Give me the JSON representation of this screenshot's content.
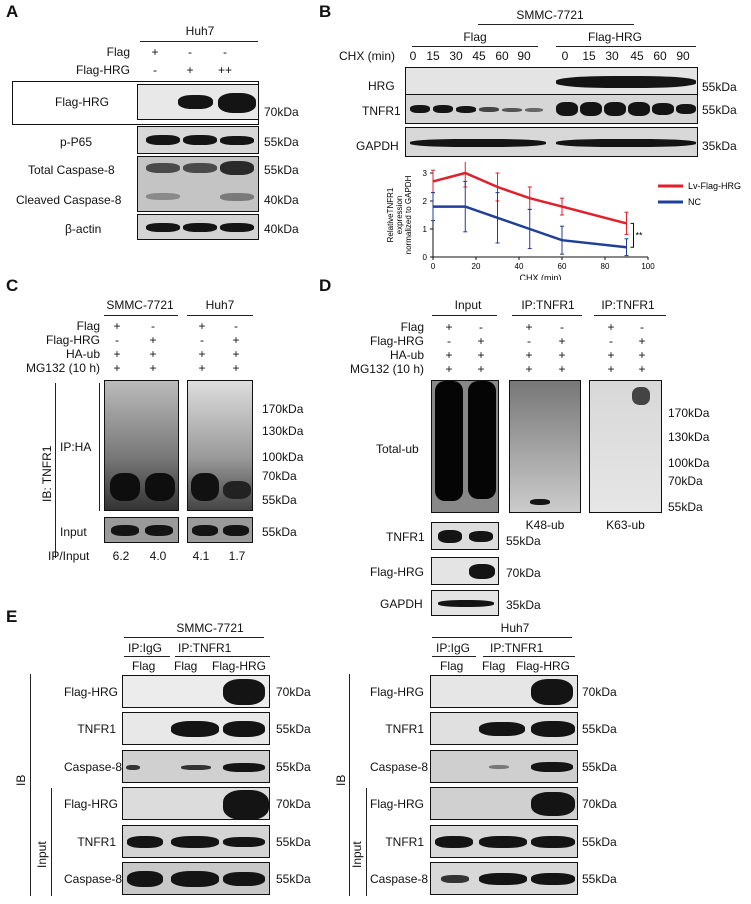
{
  "panels": [
    "A",
    "B",
    "C",
    "D",
    "E"
  ],
  "panelA": {
    "cell_line": "Huh7",
    "row_labels": [
      "Flag",
      "Flag-HRG"
    ],
    "row_values": [
      [
        "+",
        "-",
        "-"
      ],
      [
        "-",
        "+",
        "++"
      ]
    ],
    "blots": [
      "Flag-HRG",
      "p-P65",
      "Total Caspase-8",
      "Cleaved Caspase-8",
      "β-actin"
    ],
    "mw": [
      "70kDa",
      "55kDa",
      "55kDa",
      "40kDa",
      "40kDa"
    ]
  },
  "panelB": {
    "cell_line": "SMMC-7721",
    "time_label": "CHX (min)",
    "groups": [
      "Flag",
      "Flag-HRG"
    ],
    "times": [
      "0",
      "15",
      "30",
      "45",
      "60",
      "90",
      "0",
      "15",
      "30",
      "45",
      "60",
      "90"
    ],
    "blots": [
      "HRG",
      "TNFR1",
      "GAPDH"
    ],
    "mw": [
      "55kDa",
      "55kDa",
      "35kDa"
    ]
  },
  "chart_data": {
    "type": "line",
    "xlabel": "CHX (min)",
    "ylabel": "RelativeTNFR1 expression normalized to GAPDH",
    "xlim": [
      0,
      100
    ],
    "ylim": [
      0,
      3
    ],
    "xticks": [
      0,
      20,
      40,
      60,
      80,
      100
    ],
    "yticks": [
      0,
      1,
      2,
      3
    ],
    "x": [
      0,
      15,
      30,
      45,
      60,
      90
    ],
    "series": [
      {
        "name": "Lv-Flag-HRG",
        "color": "#e0202a",
        "values": [
          2.7,
          3.0,
          2.5,
          2.1,
          1.8,
          1.2
        ],
        "err": [
          0.4,
          0.5,
          0.5,
          0.4,
          0.3,
          0.4
        ]
      },
      {
        "name": "NC",
        "color": "#1f3f99",
        "values": [
          1.8,
          1.8,
          1.4,
          1.0,
          0.6,
          0.35
        ],
        "err": [
          0.5,
          0.9,
          0.9,
          0.7,
          0.5,
          0.3
        ]
      }
    ],
    "significance": "**",
    "legend_position": "right"
  },
  "panelC": {
    "cell_lines": [
      "SMMC-7721",
      "Huh7"
    ],
    "row_labels": [
      "Flag",
      "Flag-HRG",
      "HA-ub",
      "MG132 (10 h)"
    ],
    "row_values": [
      [
        "+",
        "-",
        "+",
        "-"
      ],
      [
        "-",
        "+",
        "-",
        "+"
      ],
      [
        "+",
        "+",
        "+",
        "+"
      ],
      [
        "+",
        "+",
        "+",
        "+"
      ]
    ],
    "ib_label": "IB: TNFR1",
    "ip_label": "IP:HA",
    "input_label": "Input",
    "mw": [
      "170kDa",
      "130kDa",
      "100kDa",
      "70kDa",
      "55kDa"
    ],
    "input_mw": "55kDa",
    "ratio_label": "IP/Input",
    "ratios": [
      "6.2",
      "4.0",
      "4.1",
      "1.7"
    ]
  },
  "panelD": {
    "groups": [
      "Input",
      "IP:TNFR1",
      "IP:TNFR1"
    ],
    "row_labels": [
      "Flag",
      "Flag-HRG",
      "HA-ub",
      "MG132 (10 h)"
    ],
    "row_values": [
      [
        "+",
        "-",
        "+",
        "-",
        "+",
        "-"
      ],
      [
        "-",
        "+",
        "-",
        "+",
        "-",
        "+"
      ],
      [
        "+",
        "+",
        "+",
        "+",
        "+",
        "+"
      ],
      [
        "+",
        "+",
        "+",
        "+",
        "+",
        "+"
      ]
    ],
    "total_ub": "Total-ub",
    "sub_labels": [
      "K48-ub",
      "K63-ub"
    ],
    "mw": [
      "170kDa",
      "130kDa",
      "100kDa",
      "70kDa",
      "55kDa"
    ],
    "input_blots": [
      "TNFR1",
      "Flag-HRG",
      "GAPDH"
    ],
    "input_mw": [
      "55kDa",
      "70kDa",
      "35kDa"
    ]
  },
  "panelE": {
    "left": {
      "cell_line": "SMMC-7721",
      "ip_igg": "IP:IgG",
      "ip_tnfr1": "IP:TNFR1",
      "lanes": [
        "Flag",
        "Flag",
        "Flag-HRG"
      ]
    },
    "right": {
      "cell_line": "Huh7",
      "ip_igg": "IP:IgG",
      "ip_tnfr1": "IP:TNFR1",
      "lanes": [
        "Flag",
        "Flag",
        "Flag-HRG"
      ]
    },
    "ib_label": "IB",
    "input_label": "Input",
    "blots": [
      "Flag-HRG",
      "TNFR1",
      "Caspase-8",
      "Flag-HRG",
      "TNFR1",
      "Caspase-8"
    ],
    "mw": [
      "70kDa",
      "55kDa",
      "55kDa",
      "70kDa",
      "55kDa",
      "55kDa"
    ]
  }
}
